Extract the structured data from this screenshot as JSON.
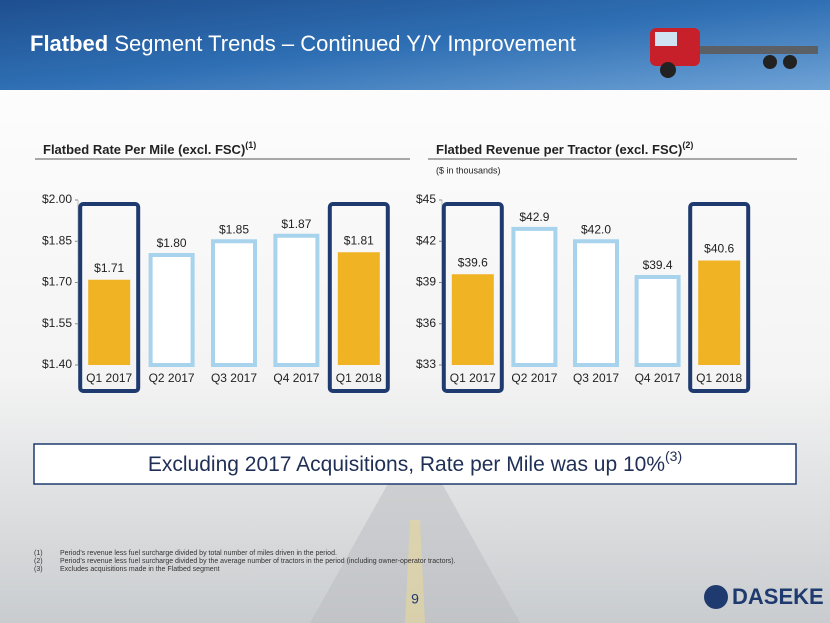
{
  "header": {
    "title_bold": "Flatbed",
    "title_rest": "Segment Trends – Continued Y/Y Improvement"
  },
  "chart_data": [
    {
      "type": "bar",
      "title": "Flatbed Rate Per Mile (excl. FSC)",
      "title_note": "(1)",
      "categories": [
        "Q1 2017",
        "Q2 2017",
        "Q3 2017",
        "Q4 2017",
        "Q1 2018"
      ],
      "values": [
        1.71,
        1.8,
        1.85,
        1.87,
        1.81
      ],
      "value_labels": [
        "$1.71",
        "$1.80",
        "$1.85",
        "$1.87",
        "$1.81"
      ],
      "colors": [
        "#f0b323",
        "#ffffff",
        "#ffffff",
        "#ffffff",
        "#f0b323"
      ],
      "edge_color": "#a8d3ec",
      "highlight_color": "#1f3a6e",
      "ylim": [
        1.4,
        2.0
      ],
      "yticks": [
        {
          "value": 1.4,
          "label": "$1.40"
        },
        {
          "value": 1.55,
          "label": "$1.55"
        },
        {
          "value": 1.7,
          "label": "$1.70"
        },
        {
          "value": 1.85,
          "label": "$1.85"
        },
        {
          "value": 2.0,
          "label": "$2.00"
        }
      ]
    },
    {
      "type": "bar",
      "title": "Flatbed Revenue per Tractor (excl. FSC)",
      "title_note": "(2)",
      "subtitle": "($ in thousands)",
      "categories": [
        "Q1 2017",
        "Q2 2017",
        "Q3 2017",
        "Q4 2017",
        "Q1 2018"
      ],
      "values": [
        39.6,
        42.9,
        42.0,
        39.4,
        40.6
      ],
      "value_labels": [
        "$39.6",
        "$42.9",
        "$42.0",
        "$39.4",
        "$40.6"
      ],
      "colors": [
        "#f0b323",
        "#ffffff",
        "#ffffff",
        "#ffffff",
        "#f0b323"
      ],
      "edge_color": "#a8d3ec",
      "highlight_color": "#1f3a6e",
      "ylim": [
        33,
        45
      ],
      "yticks": [
        {
          "value": 33,
          "label": "$33"
        },
        {
          "value": 36,
          "label": "$36"
        },
        {
          "value": 39,
          "label": "$39"
        },
        {
          "value": 42,
          "label": "$42"
        },
        {
          "value": 45,
          "label": "$45"
        }
      ]
    }
  ],
  "callout": {
    "text": "Excluding 2017 Acquisitions, Rate per Mile was up 10%",
    "note": "(3)"
  },
  "footnotes": [
    {
      "marker": "(1)",
      "text": "Period’s revenue  less fuel surcharge divided by total number of miles driven in the period."
    },
    {
      "marker": "(2)",
      "text": "Period’s revenue  less fuel surcharge divided by the average number of tractors in the period (including owner-operator tractors)."
    },
    {
      "marker": "(3)",
      "text": "Excludes acquisitions made in the Flatbed segment"
    }
  ],
  "page_number": "9",
  "logo": "DASEKE"
}
